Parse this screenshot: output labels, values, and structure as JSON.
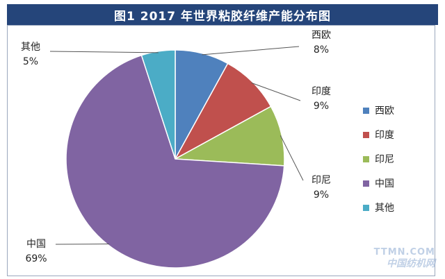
{
  "chart_data": {
    "type": "pie",
    "title": "图1  2017 年世界粘胶纤维产能分布图",
    "slices": [
      {
        "name": "西欧",
        "value": 8,
        "label": "8%",
        "color": "#4f81bd"
      },
      {
        "name": "印度",
        "value": 9,
        "label": "9%",
        "color": "#c0504d"
      },
      {
        "name": "印尼",
        "value": 9,
        "label": "9%",
        "color": "#9bbb59"
      },
      {
        "name": "中国",
        "value": 69,
        "label": "69%",
        "color": "#8064a2"
      },
      {
        "name": "其他",
        "value": 5,
        "label": "5%",
        "color": "#4bacc6"
      }
    ],
    "legend": [
      "西欧",
      "印度",
      "印尼",
      "中国",
      "其他"
    ],
    "legend_position": "right"
  },
  "watermark": {
    "line1": "TTMN.COM",
    "line2": "中国纺机网"
  }
}
